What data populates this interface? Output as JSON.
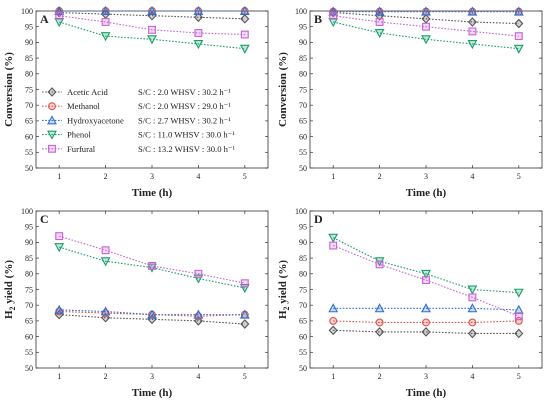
{
  "chart_data": [
    {
      "panel": "A",
      "type": "line",
      "xlabel": "Time (h)",
      "ylabel": "Conversion (%)",
      "x": [
        1,
        2,
        3,
        4,
        5
      ],
      "xlim": [
        0.5,
        5.5
      ],
      "ylim": [
        50,
        100
      ],
      "xticks": [
        "1",
        "2",
        "3",
        "4",
        "5"
      ],
      "yticks": [
        "50",
        "55",
        "60",
        "65",
        "70",
        "75",
        "80",
        "85",
        "90",
        "95",
        "100"
      ],
      "legend_position": "lower-left",
      "series": [
        {
          "name": "Acetic Acid",
          "condition": "S/C : 2.0   WHSV : 30.2 h⁻¹",
          "color": "#555555",
          "marker": "diamond",
          "values": [
            99.5,
            99.0,
            98.5,
            98.0,
            97.5
          ]
        },
        {
          "name": "Methanol",
          "condition": "S/C : 2.0   WHSV : 29.0 h⁻¹",
          "color": "#e0534c",
          "marker": "circle",
          "values": [
            100,
            100,
            100,
            100,
            100
          ]
        },
        {
          "name": "Hydroxyacetone",
          "condition": "S/C : 2.7   WHSV : 30.2 h⁻¹",
          "color": "#2f6fd0",
          "marker": "triangle-up",
          "values": [
            100,
            100,
            100,
            100,
            100
          ]
        },
        {
          "name": "Phenol",
          "condition": "S/C : 11.0  WHSV : 30.0 h⁻¹",
          "color": "#1a9e6a",
          "marker": "triangle-down",
          "values": [
            96.5,
            92.0,
            91.0,
            89.5,
            88.0
          ]
        },
        {
          "name": "Furfural",
          "condition": "S/C : 13.2  WHSV : 30.0 h⁻¹",
          "color": "#c764d4",
          "marker": "square",
          "values": [
            98.5,
            96.5,
            94.0,
            93.0,
            92.5
          ]
        }
      ]
    },
    {
      "panel": "B",
      "type": "line",
      "xlabel": "Time (h)",
      "ylabel": "Conversion (%)",
      "x": [
        1,
        2,
        3,
        4,
        5
      ],
      "xlim": [
        0.5,
        5.5
      ],
      "ylim": [
        50,
        100
      ],
      "xticks": [
        "1",
        "2",
        "3",
        "4",
        "5"
      ],
      "yticks": [
        "50",
        "55",
        "60",
        "65",
        "70",
        "75",
        "80",
        "85",
        "90",
        "95",
        "100"
      ],
      "series": [
        {
          "name": "Acetic Acid",
          "color": "#555555",
          "marker": "diamond",
          "values": [
            99.5,
            98.5,
            97.5,
            96.5,
            96.0
          ]
        },
        {
          "name": "Methanol",
          "color": "#e0534c",
          "marker": "circle",
          "values": [
            99.8,
            99.8,
            99.8,
            99.8,
            99.8
          ]
        },
        {
          "name": "Hydroxyacetone",
          "color": "#2f6fd0",
          "marker": "triangle-up",
          "values": [
            99.8,
            99.8,
            99.8,
            99.8,
            99.8
          ]
        },
        {
          "name": "Phenol",
          "color": "#1a9e6a",
          "marker": "triangle-down",
          "values": [
            96.5,
            93.0,
            91.0,
            89.5,
            88.0
          ]
        },
        {
          "name": "Furfural",
          "color": "#c764d4",
          "marker": "square",
          "values": [
            98.5,
            96.5,
            95.0,
            93.5,
            92.0
          ]
        }
      ]
    },
    {
      "panel": "C",
      "type": "line",
      "xlabel": "Time (h)",
      "ylabel": "H₂ yield (%)",
      "x": [
        1,
        2,
        3,
        4,
        5
      ],
      "xlim": [
        0.5,
        5.5
      ],
      "ylim": [
        50,
        100
      ],
      "xticks": [
        "1",
        "2",
        "3",
        "4",
        "5"
      ],
      "yticks": [
        "50",
        "55",
        "60",
        "65",
        "70",
        "75",
        "80",
        "85",
        "90",
        "95",
        "100"
      ],
      "series": [
        {
          "name": "Acetic Acid",
          "color": "#555555",
          "marker": "diamond",
          "values": [
            67.0,
            66.0,
            65.5,
            65.0,
            64.0
          ]
        },
        {
          "name": "Methanol",
          "color": "#e0534c",
          "marker": "circle",
          "values": [
            68.0,
            67.5,
            67.0,
            66.5,
            67.0
          ]
        },
        {
          "name": "Hydroxyacetone",
          "color": "#2f6fd0",
          "marker": "triangle-up",
          "values": [
            68.5,
            68.0,
            67.0,
            67.0,
            67.0
          ]
        },
        {
          "name": "Phenol",
          "color": "#1a9e6a",
          "marker": "triangle-down",
          "values": [
            88.5,
            84.0,
            82.0,
            78.5,
            75.5
          ]
        },
        {
          "name": "Furfural",
          "color": "#c764d4",
          "marker": "square",
          "values": [
            92.0,
            87.5,
            82.5,
            80.0,
            77.0
          ]
        }
      ]
    },
    {
      "panel": "D",
      "type": "line",
      "xlabel": "Time (h)",
      "ylabel": "H₂ yield (%)",
      "x": [
        1,
        2,
        3,
        4,
        5
      ],
      "xlim": [
        0.5,
        5.5
      ],
      "ylim": [
        50,
        100
      ],
      "xticks": [
        "1",
        "2",
        "3",
        "4",
        "5"
      ],
      "yticks": [
        "50",
        "55",
        "60",
        "65",
        "70",
        "75",
        "80",
        "85",
        "90",
        "95",
        "100"
      ],
      "series": [
        {
          "name": "Acetic Acid",
          "color": "#555555",
          "marker": "diamond",
          "values": [
            62.0,
            61.5,
            61.5,
            61.0,
            61.0
          ]
        },
        {
          "name": "Methanol",
          "color": "#e0534c",
          "marker": "circle",
          "values": [
            65.0,
            64.5,
            64.5,
            64.5,
            65.0
          ]
        },
        {
          "name": "Hydroxyacetone",
          "color": "#2f6fd0",
          "marker": "triangle-up",
          "values": [
            69.0,
            69.0,
            69.0,
            69.0,
            68.5
          ]
        },
        {
          "name": "Phenol",
          "color": "#1a9e6a",
          "marker": "triangle-down",
          "values": [
            91.5,
            84.0,
            80.0,
            75.0,
            74.0
          ]
        },
        {
          "name": "Furfural",
          "color": "#c764d4",
          "marker": "square",
          "values": [
            89.0,
            83.0,
            78.0,
            72.5,
            66.5
          ]
        }
      ]
    }
  ]
}
